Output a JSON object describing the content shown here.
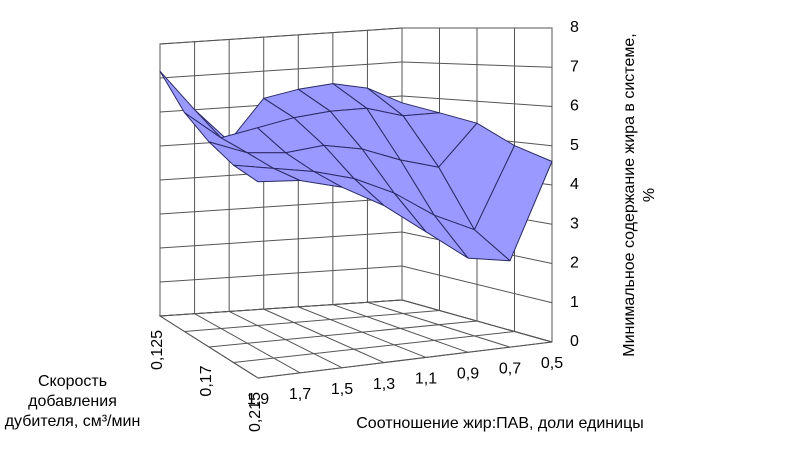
{
  "chart_data": {
    "type": "surface",
    "x_label": "Соотношение жир:ПАВ, доли единицы",
    "depth_label": "Скорость добавления дубителя, см³/мин",
    "z_label": "Минимальное содержание жира в системе, %",
    "categories": [
      "1,9",
      "1,7",
      "1,5",
      "1,3",
      "1,1",
      "0,9",
      "0,7",
      "0,5"
    ],
    "depth_categories": [
      "0,125",
      null,
      "0,17",
      null,
      "0,215"
    ],
    "values": [
      [
        7.2,
        6.0,
        5.0,
        6.2,
        6.4,
        6.5,
        6.3,
        5.8
      ],
      [
        6.2,
        5.4,
        5.6,
        5.8,
        5.9,
        5.9,
        5.6,
        5.6
      ],
      [
        5.6,
        5.2,
        5.1,
        5.2,
        5.0,
        4.6,
        4.3,
        5.4
      ],
      [
        5.2,
        5.0,
        4.8,
        4.5,
        4.0,
        3.3,
        2.8,
        4.9
      ],
      [
        5.0,
        4.9,
        4.6,
        4.0,
        3.2,
        2.4,
        2.2,
        4.6
      ]
    ],
    "color": "#9999ff",
    "zlim": [
      0,
      8
    ],
    "zticks": [
      0,
      1,
      2,
      3,
      4,
      5,
      6,
      7,
      8
    ],
    "grid": true
  }
}
